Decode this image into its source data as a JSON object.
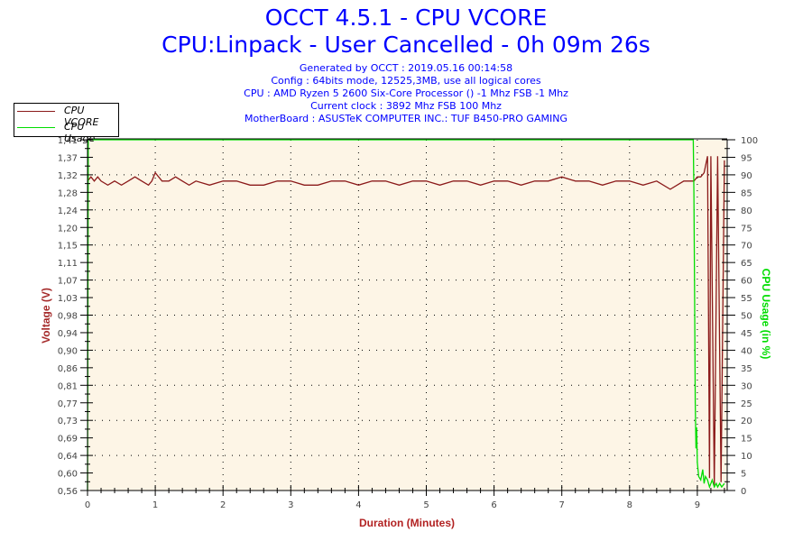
{
  "header": {
    "title": "OCCT 4.5.1 - CPU VCORE",
    "subtitle": "CPU:Linpack - User Cancelled - 0h 09m 26s",
    "info_lines": [
      "Generated by OCCT : 2019.05.16 00:14:58",
      "Config : 64bits mode, 12525,3MB, use all logical cores",
      "CPU : AMD Ryzen 5 2600 Six-Core Processor () -1 Mhz FSB -1 Mhz",
      "Current clock : 3892 Mhz FSB 100 Mhz",
      "MotherBoard : ASUSTeK COMPUTER INC.: TUF B450-PRO GAMING"
    ]
  },
  "legend": {
    "items": [
      {
        "label": "CPU VCORE",
        "color": "#8b1a1a"
      },
      {
        "label": "CPU Usage",
        "color": "#00dd00"
      }
    ]
  },
  "colors": {
    "vcore": "#8b1a1a",
    "usage": "#00dd00",
    "plot_bg": "#fdf5e6",
    "title": "#0000ff",
    "left_axis_title": "#a52a2a",
    "right_axis_title": "#00dd00",
    "x_axis_title": "#b22222"
  },
  "chart_data": {
    "type": "line",
    "title": "OCCT 4.5.1 - CPU VCORE",
    "subtitle": "CPU:Linpack - User Cancelled - 0h 09m 26s",
    "xlabel": "Duration (Minutes)",
    "ylabel": "Voltage (V)",
    "y2label": "CPU Usage (in %)",
    "xlim": [
      0,
      9.43
    ],
    "ylim": [
      0.56,
      1.41
    ],
    "y2lim": [
      0,
      100
    ],
    "x_ticks": [
      "0",
      "1",
      "2",
      "3",
      "4",
      "5",
      "6",
      "7",
      "8",
      "9"
    ],
    "y_ticks": [
      "1,41",
      "1,37",
      "1,32",
      "1,28",
      "1,24",
      "1,20",
      "1,15",
      "1,11",
      "1,07",
      "1,03",
      "0,98",
      "0,94",
      "0,90",
      "0,86",
      "0,81",
      "0,77",
      "0,73",
      "0,69",
      "0,64",
      "0,60",
      "0,56"
    ],
    "y2_ticks": [
      "100",
      "95",
      "90",
      "85",
      "80",
      "75",
      "70",
      "65",
      "60",
      "55",
      "50",
      "45",
      "40",
      "35",
      "30",
      "25",
      "20",
      "15",
      "10",
      "5",
      "0"
    ],
    "grid": true,
    "legend_position": "top-left",
    "series": [
      {
        "name": "CPU VCORE",
        "axis": "left",
        "x": [
          0,
          0.05,
          0.1,
          0.15,
          0.2,
          0.3,
          0.4,
          0.5,
          0.6,
          0.7,
          0.8,
          0.9,
          0.95,
          1.0,
          1.1,
          1.2,
          1.3,
          1.4,
          1.5,
          1.6,
          1.8,
          2.0,
          2.2,
          2.4,
          2.6,
          2.8,
          3.0,
          3.2,
          3.4,
          3.6,
          3.8,
          4.0,
          4.2,
          4.4,
          4.6,
          4.8,
          5.0,
          5.2,
          5.4,
          5.6,
          5.8,
          6.0,
          6.2,
          6.4,
          6.6,
          6.8,
          7.0,
          7.2,
          7.4,
          7.6,
          7.8,
          8.0,
          8.2,
          8.4,
          8.6,
          8.8,
          8.95,
          9.0,
          9.05,
          9.1,
          9.15,
          9.18,
          9.2,
          9.25,
          9.3,
          9.35,
          9.4
        ],
        "values": [
          1.31,
          1.32,
          1.31,
          1.32,
          1.31,
          1.3,
          1.31,
          1.3,
          1.31,
          1.32,
          1.31,
          1.3,
          1.31,
          1.33,
          1.31,
          1.31,
          1.32,
          1.31,
          1.3,
          1.31,
          1.3,
          1.31,
          1.31,
          1.3,
          1.3,
          1.31,
          1.31,
          1.3,
          1.3,
          1.31,
          1.31,
          1.3,
          1.31,
          1.31,
          1.3,
          1.31,
          1.31,
          1.3,
          1.31,
          1.31,
          1.3,
          1.31,
          1.31,
          1.3,
          1.31,
          1.31,
          1.32,
          1.31,
          1.31,
          1.3,
          1.31,
          1.31,
          1.3,
          1.31,
          1.29,
          1.31,
          1.31,
          1.32,
          1.32,
          1.33,
          1.37,
          0.59,
          1.37,
          0.57,
          1.37,
          0.58,
          1.36
        ]
      },
      {
        "name": "CPU Usage",
        "axis": "right",
        "x": [
          0,
          0.01,
          8.94,
          8.95,
          8.96,
          8.97,
          8.98,
          8.99,
          9.0,
          9.02,
          9.05,
          9.08,
          9.1,
          9.12,
          9.15,
          9.18,
          9.2,
          9.22,
          9.25,
          9.28,
          9.3,
          9.33,
          9.36,
          9.4
        ],
        "values": [
          0,
          100,
          100,
          85,
          55,
          25,
          12,
          18,
          8,
          4,
          3,
          6,
          2,
          4,
          3,
          1,
          2,
          3,
          1,
          2,
          1,
          2,
          1,
          2
        ]
      }
    ]
  },
  "axes": {
    "x_title": "Duration (Minutes)",
    "left_title": "Voltage (V)",
    "right_title": "CPU Usage (in %)"
  }
}
